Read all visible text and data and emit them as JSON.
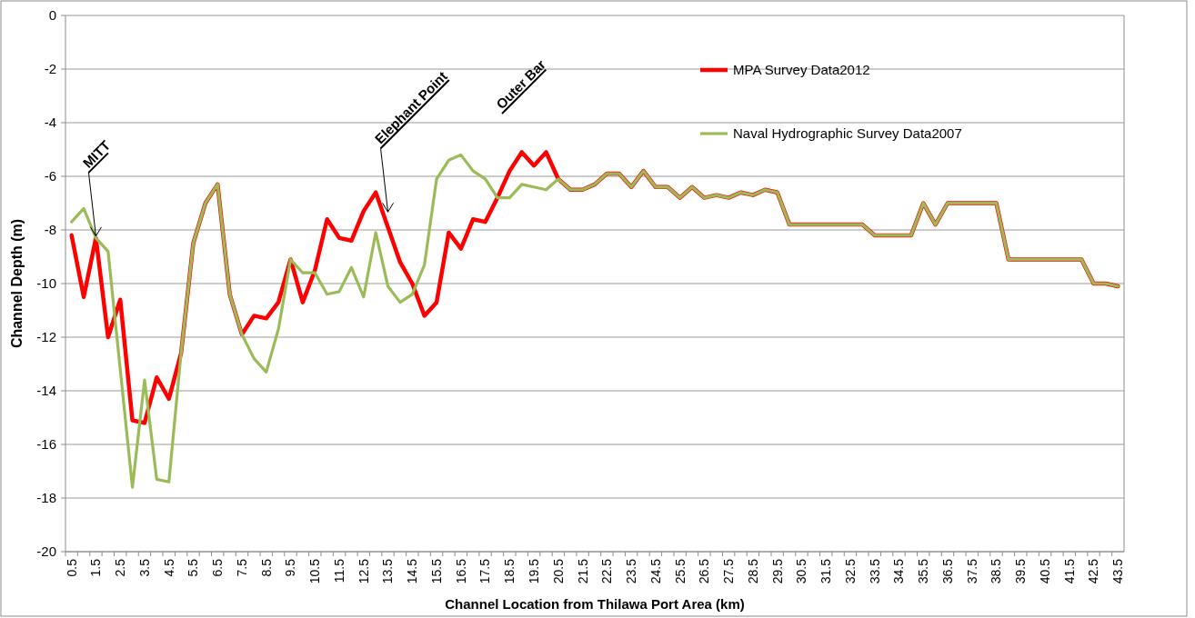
{
  "chart_data": {
    "type": "line",
    "xlabel": "Channel Location from Thilawa Port Area (km)",
    "ylabel": "Channel Depth  (m)",
    "categories": [
      "0.5",
      null,
      "1.5",
      null,
      "2.5",
      null,
      "3.5",
      null,
      "4.5",
      null,
      "5.5",
      null,
      "6.5",
      null,
      "7.5",
      null,
      "8.5",
      null,
      "9.5",
      null,
      "10.5",
      null,
      "11.5",
      null,
      "12.5",
      null,
      "13.5",
      null,
      "14.5",
      null,
      "15.5",
      null,
      "16.5",
      null,
      "17.5",
      null,
      "18.5",
      null,
      "19.5",
      null,
      "20.5",
      null,
      "21.5",
      null,
      "22.5",
      null,
      "23.5",
      null,
      "24.5",
      null,
      "25.5",
      null,
      "26.5",
      null,
      "27.5",
      null,
      "28.5",
      null,
      "29.5",
      null,
      "30.5",
      null,
      "31.5",
      null,
      "32.5",
      null,
      "33.5",
      null,
      "34.5",
      null,
      "35.5",
      null,
      "36.5",
      null,
      "37.5",
      null,
      "38.5",
      null,
      "39.5",
      null,
      "40.5",
      null,
      "41.5",
      null,
      "42.5",
      null,
      "43.5"
    ],
    "series": [
      {
        "name": "MPA Survey Data2012",
        "color": "#ff0000",
        "values": [
          -8.2,
          -10.5,
          -8.3,
          -12.0,
          -10.6,
          -15.1,
          -15.2,
          -13.5,
          -14.3,
          -12.6,
          -8.5,
          -7.0,
          -6.3,
          -10.4,
          -11.9,
          -11.2,
          -11.3,
          -10.7,
          -9.1,
          -10.7,
          -9.5,
          -7.6,
          -8.3,
          -8.4,
          -7.3,
          -6.6,
          -7.9,
          -9.2,
          -10.0,
          -11.2,
          -10.7,
          -8.1,
          -8.7,
          -7.6,
          -7.7,
          -6.8,
          -5.8,
          -5.1,
          -5.6,
          -5.1,
          -6.1,
          -6.5,
          -6.5,
          -6.3,
          -5.9,
          -5.9,
          -6.4,
          -5.8,
          -6.4,
          -6.4,
          -6.8,
          -6.4,
          -6.8,
          -6.7,
          -6.8,
          -6.6,
          -6.7,
          -6.5,
          -6.6,
          -7.8,
          -7.8,
          -7.8,
          -7.8,
          -7.8,
          -7.8,
          -7.8,
          -8.2,
          -8.2,
          -8.2,
          -8.2,
          -7.0,
          -7.8,
          -7.0,
          -7.0,
          -7.0,
          -7.0,
          -7.0,
          -9.1,
          -9.1,
          -9.1,
          -9.1,
          -9.1,
          -9.1,
          -9.1,
          -10.0,
          -10.0,
          -10.1
        ]
      },
      {
        "name": "Naval Hydrographic Survey Data2007",
        "color": "#9bbb59",
        "values": [
          -7.7,
          -7.2,
          -8.3,
          -8.8,
          -13.2,
          -17.6,
          -13.6,
          -17.3,
          -17.4,
          -12.6,
          -8.5,
          -7.0,
          -6.3,
          -10.4,
          -11.9,
          -12.8,
          -13.3,
          -11.7,
          -9.1,
          -9.6,
          -9.6,
          -10.4,
          -10.3,
          -9.4,
          -10.5,
          -8.1,
          -10.1,
          -10.7,
          -10.4,
          -9.3,
          -6.1,
          -5.4,
          -5.2,
          -5.8,
          -6.1,
          -6.8,
          -6.8,
          -6.3,
          -6.4,
          -6.5,
          -6.1,
          -6.5,
          -6.5,
          -6.3,
          -5.9,
          -5.9,
          -6.4,
          -5.8,
          -6.4,
          -6.4,
          -6.8,
          -6.4,
          -6.8,
          -6.7,
          -6.8,
          -6.6,
          -6.7,
          -6.5,
          -6.6,
          -7.8,
          -7.8,
          -7.8,
          -7.8,
          -7.8,
          -7.8,
          -7.8,
          -8.2,
          -8.2,
          -8.2,
          -8.2,
          -7.0,
          -7.8,
          -7.0,
          -7.0,
          -7.0,
          -7.0,
          -7.0,
          -9.1,
          -9.1,
          -9.1,
          -9.1,
          -9.1,
          -9.1,
          -9.1,
          -10.0,
          -10.0,
          -10.1
        ]
      }
    ],
    "ylim": [
      -20,
      0
    ],
    "yticks": [
      -20,
      -18,
      -16,
      -14,
      -12,
      -10,
      -8,
      -6,
      -4,
      -2,
      0
    ],
    "grid": "y",
    "legend": "top right",
    "marker": "none",
    "line_style": "solid",
    "annotations": [
      {
        "text": "MITT",
        "x": "1.5",
        "y": -8.3
      },
      {
        "text": "Elephant Point",
        "x": "13.5",
        "y": -7.4
      },
      "Outer Bar"
    ]
  }
}
